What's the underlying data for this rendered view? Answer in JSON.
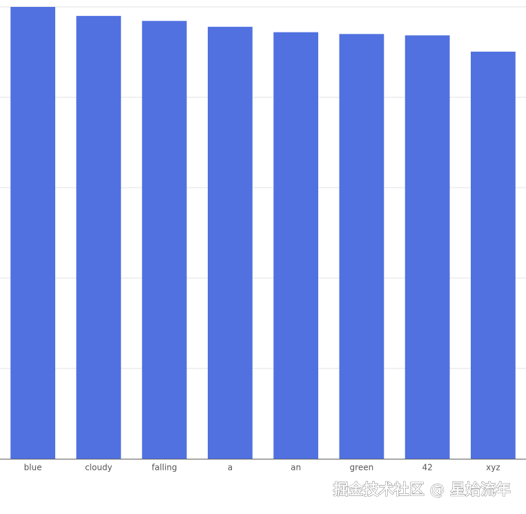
{
  "chart_data": {
    "type": "bar",
    "categories": [
      "blue",
      "cloudy",
      "falling",
      "a",
      "an",
      "green",
      "42",
      "xyz"
    ],
    "values": [
      100,
      98,
      96.9,
      95.6,
      94.4,
      94,
      93.7,
      90.1
    ],
    "color": "#5171e0",
    "ylim": [
      0,
      100
    ],
    "yticks": [
      0,
      20,
      40,
      60,
      80,
      100
    ],
    "grid": true,
    "watermark": "掘金技术社区 @ 星始流年"
  }
}
